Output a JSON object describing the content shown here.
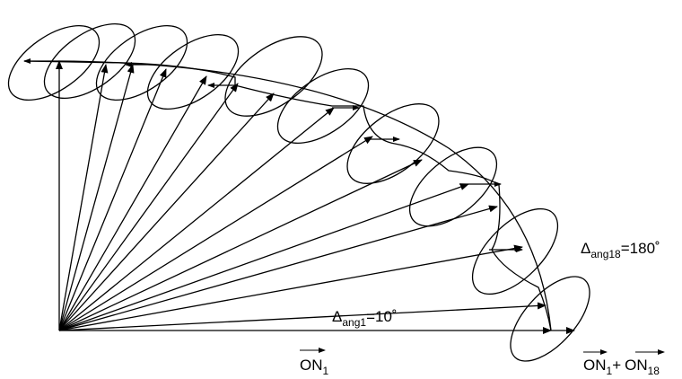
{
  "labels": {
    "delta": "Δ",
    "ang1_sub": "ang1",
    "ang1_eq": "=10˚",
    "ang18_sub": "ang18",
    "ang18_eq": "=180˚",
    "on": "ON",
    "sub1": "1",
    "sub18": "18",
    "plus": "+"
  }
}
